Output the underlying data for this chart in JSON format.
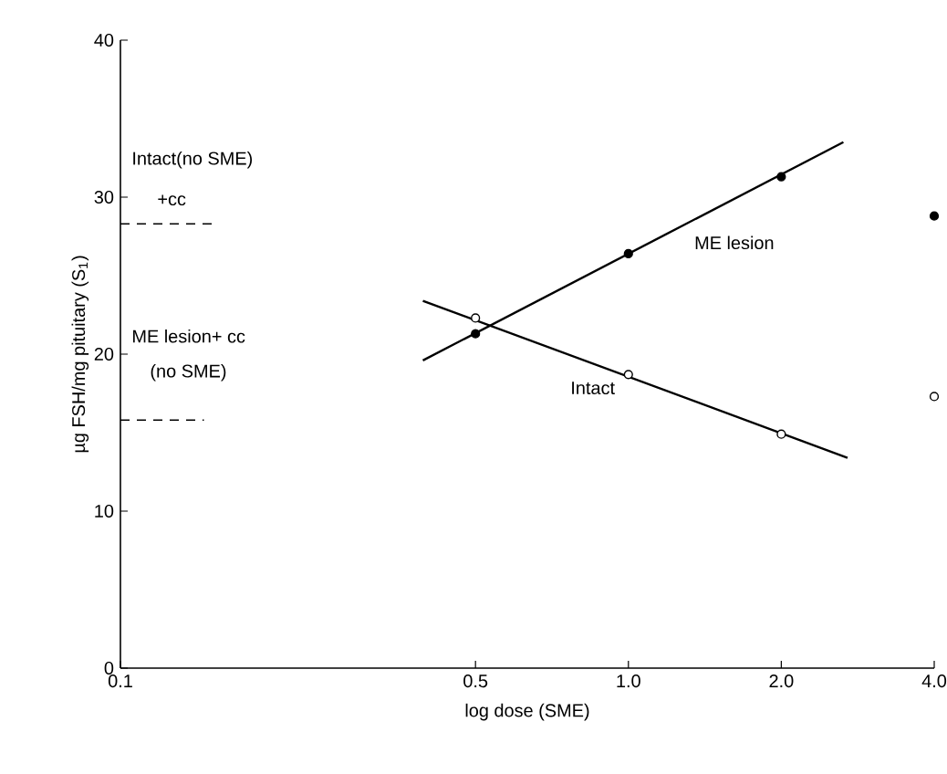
{
  "chart_data": {
    "type": "line",
    "xlabel": "log dose (SME)",
    "ylabel": "µg FSH/mg pituitary (S$_{1}$)",
    "log": "x",
    "xlim": [
      0.1,
      4.0
    ],
    "ylim": [
      0,
      40
    ],
    "xticks": [
      {
        "value": 0.1,
        "label": "0.1"
      },
      {
        "value": 0.5,
        "label": "0.5"
      },
      {
        "value": 1,
        "label": "1.0"
      },
      {
        "value": 2,
        "label": "2.0"
      },
      {
        "value": 4,
        "label": "4.0"
      }
    ],
    "yticks": [
      0,
      10,
      20,
      30,
      40
    ],
    "grid": false,
    "series": [
      {
        "name": "ME lesion",
        "color": "#000000",
        "marker": "none",
        "x": [
          0.394,
          2.65
        ],
        "values": [
          19.6,
          33.5
        ]
      },
      {
        "name": "Intact",
        "color": "#000000",
        "marker": "none",
        "x": [
          0.394,
          2.7
        ],
        "values": [
          23.4,
          13.4
        ]
      },
      {
        "type": "scatter",
        "color": "#000000",
        "marker": "circle",
        "x": [
          0.5,
          1,
          2,
          4
        ],
        "values": [
          21.3,
          26.4,
          31.3,
          28.8
        ]
      },
      {
        "type": "scatter",
        "color": "#ffffff",
        "marker": "circle",
        "x": [
          0.5,
          1,
          2,
          4
        ],
        "values": [
          22.3,
          18.7,
          14.9,
          17.3
        ]
      },
      {
        "color": "#000000",
        "marker": "none",
        "line_style": "dashed",
        "x": [
          0.1,
          0.152
        ],
        "values": [
          28.3,
          28.3
        ]
      },
      {
        "color": "#000000",
        "marker": "none",
        "line_style": "dashed",
        "x": [
          0.1,
          0.146
        ],
        "values": [
          15.8,
          15.8
        ]
      }
    ],
    "annotations": [
      "Intact(no SME)",
      "+cc",
      "ME lesion+ cc",
      "(no SME)"
    ]
  }
}
